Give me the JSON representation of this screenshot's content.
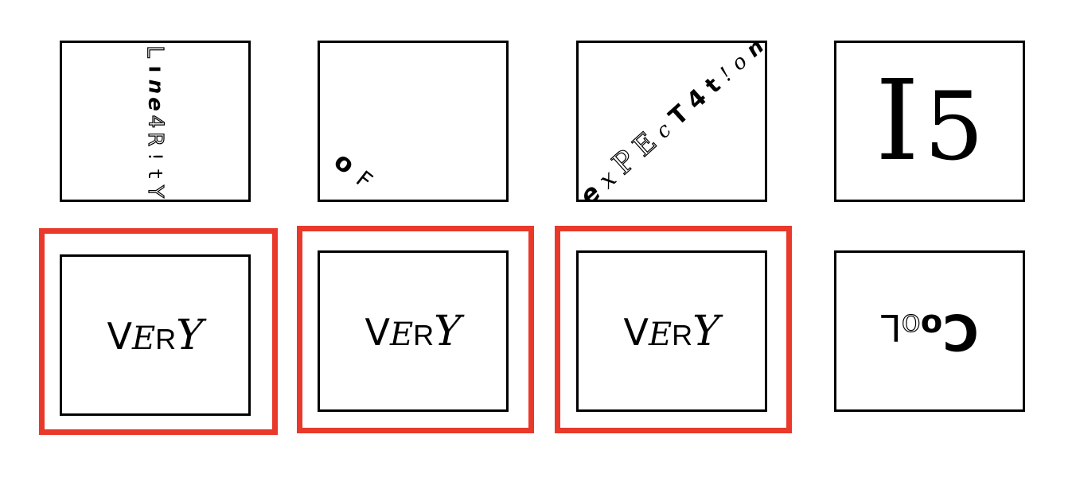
{
  "tiles": [
    {
      "name": "tile-lnearity",
      "glyphs": [
        "L",
        "ı",
        "n",
        "e",
        "4",
        "R",
        "!",
        "t",
        "Y"
      ]
    },
    {
      "name": "tile-of",
      "glyphs": [
        "o",
        "F"
      ]
    },
    {
      "name": "tile-expectation",
      "glyphs": [
        "e",
        "x",
        "P",
        "E",
        "c",
        "T",
        "4",
        "t",
        "!",
        "o",
        "n"
      ]
    },
    {
      "name": "tile-is",
      "glyphs": [
        "I",
        "5"
      ]
    },
    {
      "name": "tile-very-1",
      "glyphs": [
        "V",
        "E",
        "R",
        "Y"
      ],
      "selected": true
    },
    {
      "name": "tile-very-2",
      "glyphs": [
        "V",
        "E",
        "R",
        "Y"
      ],
      "selected": true
    },
    {
      "name": "tile-very-3",
      "glyphs": [
        "V",
        "E",
        "R",
        "Y"
      ],
      "selected": true
    },
    {
      "name": "tile-cool",
      "glyphs": [
        "C",
        "o",
        "o",
        "L"
      ]
    }
  ],
  "colors": {
    "selection": "#e8392a",
    "border": "#000000"
  }
}
